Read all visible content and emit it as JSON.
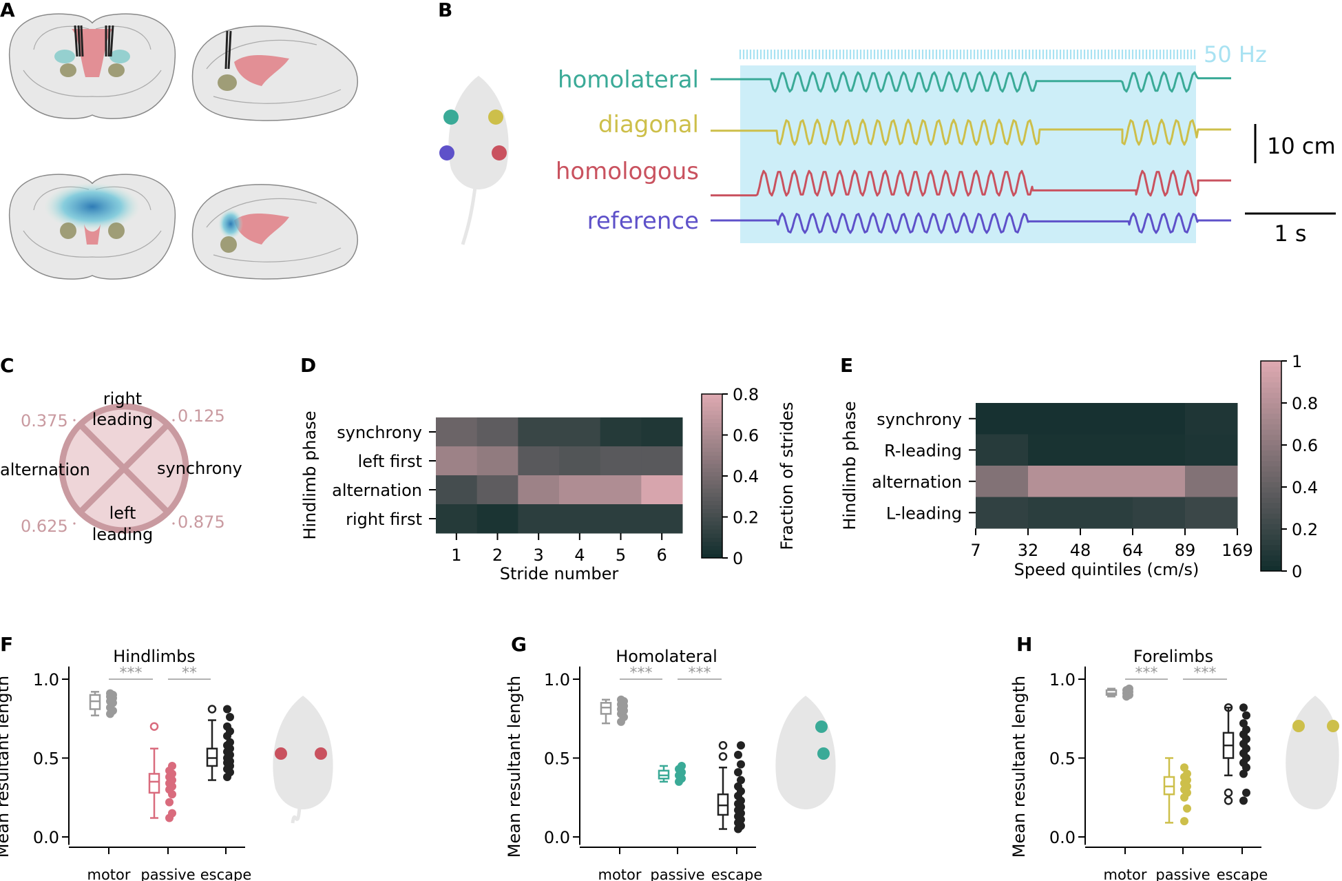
{
  "panel_letters": {
    "a": "A",
    "b": "B",
    "c": "C",
    "d": "D",
    "e": "E",
    "f": "F",
    "g": "G",
    "h": "H"
  },
  "panel_b": {
    "freq_label": "50 Hz",
    "traces": [
      {
        "label": "homolateral",
        "color": "#3aaa97"
      },
      {
        "label": "diagonal",
        "color": "#cdbf4a"
      },
      {
        "label": "homologous",
        "color": "#c9525f"
      },
      {
        "label": "reference",
        "color": "#5e51c9"
      }
    ],
    "scale_v": "10 cm",
    "scale_h": "1 s",
    "stim_color": "#cdeef8"
  },
  "panel_c": {
    "top": [
      "right",
      "leading"
    ],
    "bottom": [
      "left",
      "leading"
    ],
    "left": "alternation",
    "right": "synchrony",
    "q_tl": "0.375",
    "q_tr": "0.125",
    "q_bl": "0.625",
    "q_br": "0.875",
    "color": "#c99aa0"
  },
  "chart_data": [
    {
      "id": "D",
      "type": "heatmap",
      "ylabel": "Hindlimb phase",
      "xlabel": "Stride number",
      "categories_y": [
        "synchrony",
        "left first",
        "alternation",
        "right first"
      ],
      "categories_x": [
        "1",
        "2",
        "3",
        "4",
        "5",
        "6"
      ],
      "values": [
        [
          0.35,
          0.3,
          0.15,
          0.15,
          0.07,
          0.05
        ],
        [
          0.55,
          0.5,
          0.28,
          0.25,
          0.28,
          0.28
        ],
        [
          0.2,
          0.3,
          0.55,
          0.62,
          0.62,
          0.78
        ],
        [
          0.07,
          0.03,
          0.1,
          0.1,
          0.1,
          0.1
        ]
      ],
      "colorbar": {
        "label": "Fraction of strides",
        "ticks": [
          "0",
          "0.2",
          "0.4",
          "0.6",
          "0.8"
        ],
        "range": [
          0,
          0.8
        ]
      }
    },
    {
      "id": "E",
      "type": "heatmap",
      "ylabel": "Hindlimb phase",
      "xlabel": "Speed quintiles (cm/s)",
      "categories_y": [
        "synchrony",
        "R-leading",
        "alternation",
        "L-leading"
      ],
      "x_ticks": [
        "7",
        "32",
        "48",
        "64",
        "89",
        "169"
      ],
      "values": [
        [
          0.02,
          0.02,
          0.02,
          0.02,
          0.06
        ],
        [
          0.1,
          0.03,
          0.03,
          0.03,
          0.05
        ],
        [
          0.55,
          0.8,
          0.8,
          0.8,
          0.55
        ],
        [
          0.15,
          0.12,
          0.12,
          0.15,
          0.2
        ]
      ],
      "colorbar": {
        "label": "Fraction of strides",
        "ticks": [
          "0",
          "0.2",
          "0.4",
          "0.6",
          "0.8",
          "1"
        ],
        "range": [
          0,
          1
        ]
      }
    },
    {
      "id": "F",
      "type": "box",
      "title": "Hindlimbs",
      "ylabel": "Mean resultant length",
      "categories": [
        "motor",
        "passive",
        "escape"
      ],
      "ylim": [
        0,
        1
      ],
      "y_ticks": [
        "0.0",
        "0.5",
        "1.0"
      ],
      "color": "#d96b7d",
      "boxes": [
        {
          "min": 0.77,
          "q1": 0.81,
          "median": 0.86,
          "q3": 0.9,
          "max": 0.92
        },
        {
          "min": 0.12,
          "q1": 0.28,
          "median": 0.35,
          "q3": 0.4,
          "max": 0.56
        },
        {
          "min": 0.36,
          "q1": 0.45,
          "median": 0.5,
          "q3": 0.56,
          "max": 0.74
        }
      ],
      "points": [
        [
          0.78,
          0.8,
          0.82,
          0.85,
          0.86,
          0.88,
          0.89,
          0.9,
          0.91
        ],
        [
          0.12,
          0.15,
          0.22,
          0.27,
          0.3,
          0.32,
          0.34,
          0.36,
          0.38,
          0.4,
          0.42,
          0.45
        ],
        [
          0.38,
          0.41,
          0.43,
          0.45,
          0.47,
          0.48,
          0.5,
          0.52,
          0.54,
          0.56,
          0.58,
          0.6,
          0.64,
          0.67,
          0.7,
          0.76,
          0.81
        ]
      ],
      "outliers": [
        [],
        [
          0.7
        ],
        [
          0.81
        ]
      ],
      "significance": [
        "***",
        "**"
      ]
    },
    {
      "id": "G",
      "type": "box",
      "title": "Homolateral",
      "ylabel": "Mean resultant length",
      "categories": [
        "motor",
        "passive",
        "escape"
      ],
      "ylim": [
        0,
        1
      ],
      "y_ticks": [
        "0.0",
        "0.5",
        "1.0"
      ],
      "color": "#3aaa97",
      "boxes": [
        {
          "min": 0.72,
          "q1": 0.78,
          "median": 0.82,
          "q3": 0.85,
          "max": 0.87
        },
        {
          "min": 0.35,
          "q1": 0.37,
          "median": 0.39,
          "q3": 0.42,
          "max": 0.45
        },
        {
          "min": 0.05,
          "q1": 0.14,
          "median": 0.2,
          "q3": 0.27,
          "max": 0.44
        }
      ],
      "points": [
        [
          0.73,
          0.76,
          0.78,
          0.8,
          0.81,
          0.83,
          0.84,
          0.86,
          0.87
        ],
        [
          0.35,
          0.37,
          0.39,
          0.41,
          0.43,
          0.45
        ],
        [
          0.05,
          0.07,
          0.09,
          0.11,
          0.13,
          0.15,
          0.17,
          0.19,
          0.21,
          0.23,
          0.26,
          0.29,
          0.32,
          0.36,
          0.41,
          0.46,
          0.52,
          0.58
        ]
      ],
      "outliers": [
        [],
        [],
        [
          0.51,
          0.58
        ]
      ],
      "significance": [
        "***",
        "***"
      ]
    },
    {
      "id": "H",
      "type": "box",
      "title": "Forelimbs",
      "ylabel": "Mean resultant length",
      "categories": [
        "motor",
        "passive",
        "escape"
      ],
      "ylim": [
        0,
        1
      ],
      "y_ticks": [
        "0.0",
        "0.5",
        "1.0"
      ],
      "color": "#cdbf4a",
      "boxes": [
        {
          "min": 0.89,
          "q1": 0.9,
          "median": 0.91,
          "q3": 0.93,
          "max": 0.94
        },
        {
          "min": 0.09,
          "q1": 0.27,
          "median": 0.32,
          "q3": 0.38,
          "max": 0.5
        },
        {
          "min": 0.39,
          "q1": 0.5,
          "median": 0.58,
          "q3": 0.66,
          "max": 0.82
        }
      ],
      "points": [
        [
          0.89,
          0.9,
          0.91,
          0.92,
          0.93,
          0.94
        ],
        [
          0.1,
          0.18,
          0.25,
          0.28,
          0.3,
          0.32,
          0.34,
          0.36,
          0.38,
          0.4,
          0.44
        ],
        [
          0.23,
          0.28,
          0.4,
          0.44,
          0.47,
          0.5,
          0.53,
          0.56,
          0.59,
          0.62,
          0.65,
          0.68,
          0.72,
          0.77,
          0.82
        ]
      ],
      "outliers": [
        [],
        [],
        [
          0.23,
          0.28,
          0.82
        ]
      ],
      "significance": [
        "***",
        "***"
      ]
    }
  ]
}
